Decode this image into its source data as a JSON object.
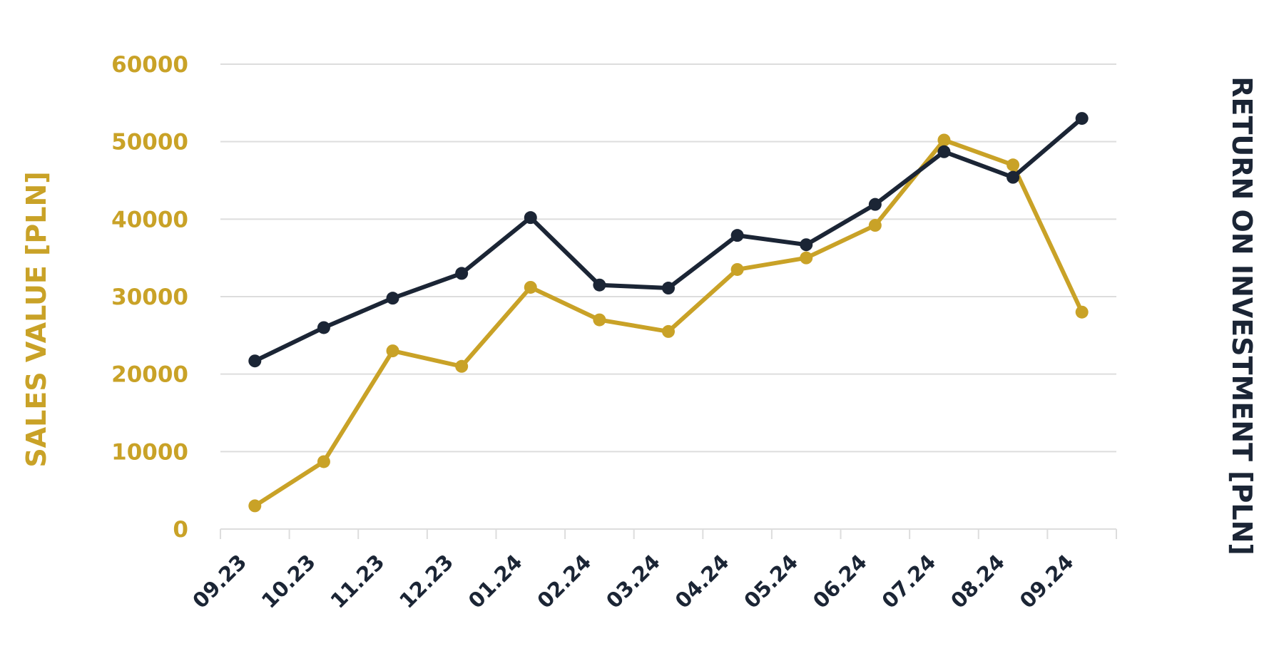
{
  "chart_data": {
    "type": "line",
    "categories": [
      "09.23",
      "10.23",
      "11.23",
      "12.23",
      "01.24",
      "02.24",
      "03.24",
      "04.24",
      "05.24",
      "06.24",
      "07.24",
      "08.24",
      "09.24"
    ],
    "series": [
      {
        "key": "sales",
        "color": "#c9a227",
        "axis": "left",
        "values": [
          3000,
          8700,
          23000,
          21000,
          31200,
          27000,
          25500,
          33500,
          35000,
          39200,
          50200,
          47000,
          28000
        ]
      },
      {
        "key": "roi",
        "color": "#1b2535",
        "axis": "right",
        "values": [
          21700,
          26000,
          29800,
          33000,
          40200,
          31500,
          31100,
          37900,
          36700,
          41900,
          48700,
          45400,
          53000
        ]
      }
    ],
    "yticks": [
      "0",
      "10000",
      "20000",
      "30000",
      "40000",
      "50000",
      "60000"
    ],
    "ylim": [
      0,
      60000
    ],
    "ylabel_left": "SALES VALUE [PLN]",
    "ylabel_right": "RETURN ON INVESTMENT [PLN]",
    "grid": true,
    "colors": {
      "left_axis": "#c9a227",
      "right_axis": "#1b2535",
      "grid": "#dddddd"
    }
  }
}
